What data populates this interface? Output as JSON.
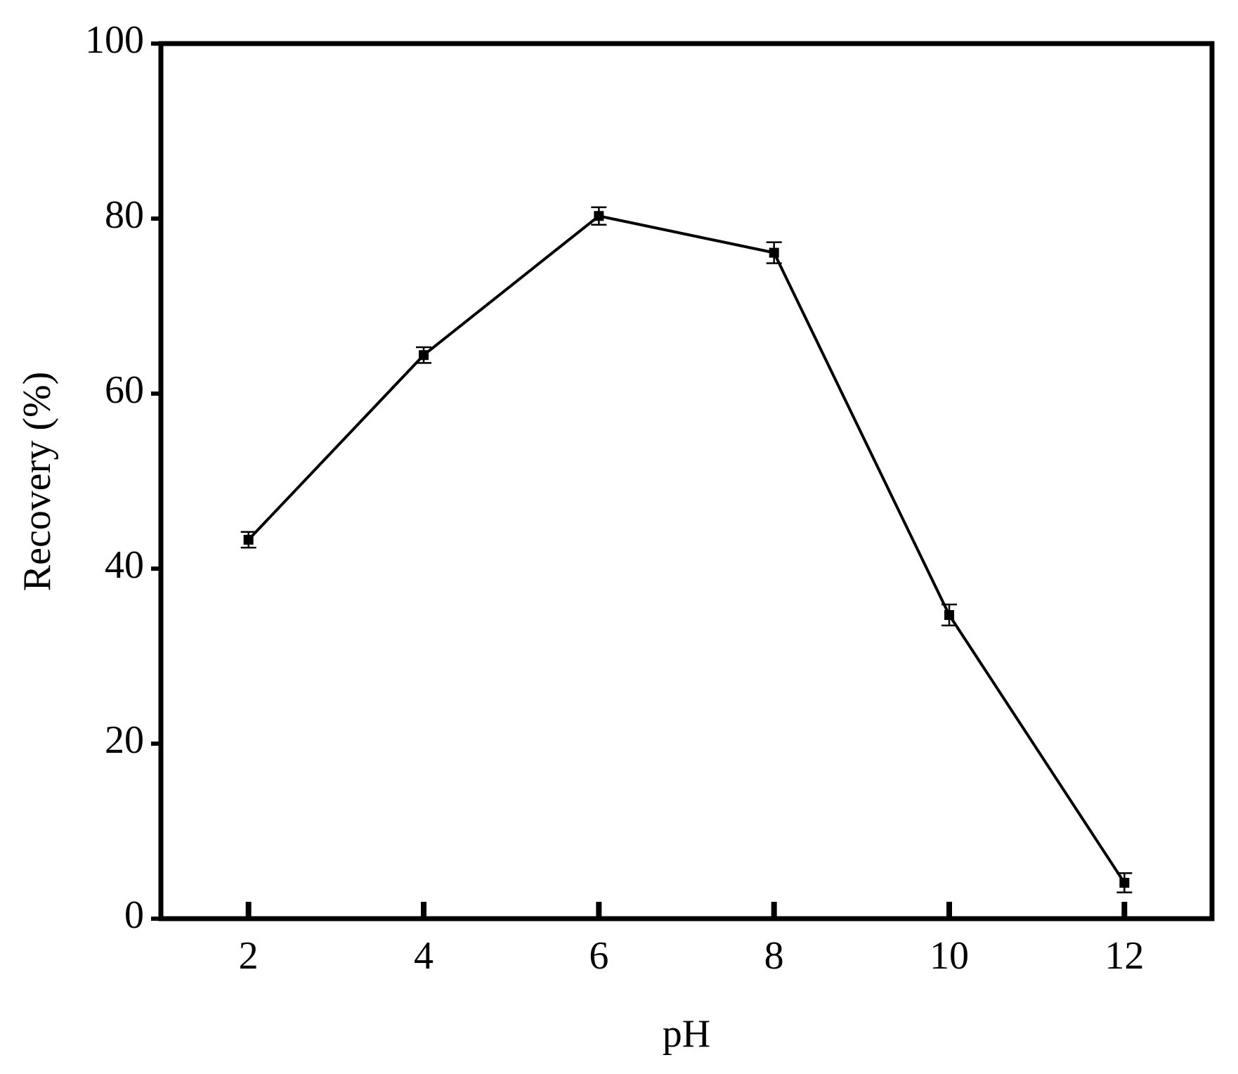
{
  "chart_data": {
    "type": "line",
    "x_label": "pH",
    "y_label": "Recovery (%)",
    "x": [
      2,
      4,
      6,
      8,
      10,
      12
    ],
    "values": [
      43.3,
      64.4,
      80.3,
      76.1,
      34.7,
      4.1
    ],
    "errors": [
      0.9,
      0.9,
      1.0,
      1.2,
      1.2,
      1.1
    ],
    "color": "#000000",
    "xlim": [
      1,
      13
    ],
    "xticks": [
      2,
      4,
      6,
      8,
      10,
      12
    ],
    "ylim": [
      0,
      100
    ],
    "yticks": [
      0,
      20,
      40,
      60,
      80,
      100
    ],
    "grid": false
  }
}
